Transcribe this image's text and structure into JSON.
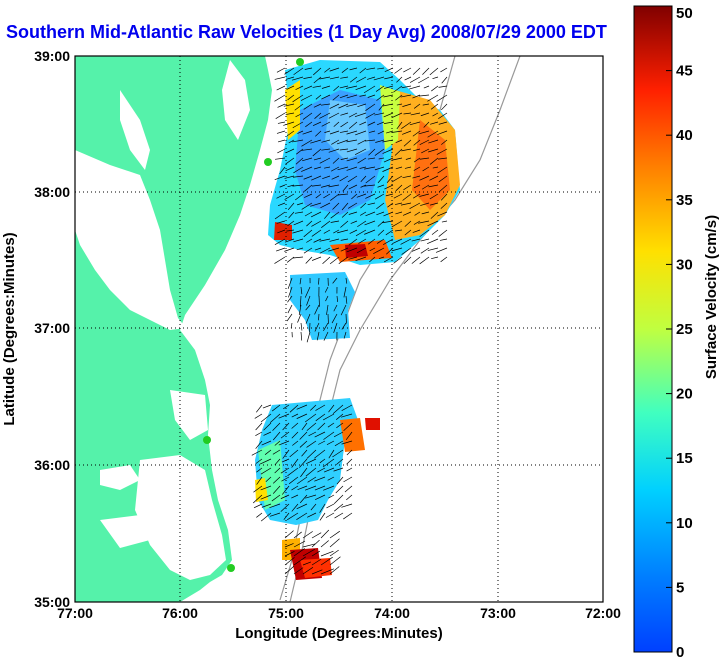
{
  "title": "Southern Mid-Atlantic Raw Velocities (1 Day Avg) 2008/07/29 2000 EDT",
  "axes": {
    "xlabel": "Longitude (Degrees:Minutes)",
    "ylabel": "Latitude (Degrees:Minutes)",
    "xticks": [
      "77:00",
      "76:00",
      "75:00",
      "74:00",
      "73:00",
      "72:00"
    ],
    "yticks": [
      "39:00",
      "38:00",
      "37:00",
      "36:00",
      "35:00"
    ],
    "xlim": [
      -77,
      -72
    ],
    "ylim": [
      35,
      39
    ],
    "grid": "dotted"
  },
  "colorbar": {
    "label": "Surface Velocity (cm/s)",
    "ticks": [
      "0",
      "5",
      "10",
      "15",
      "20",
      "25",
      "30",
      "35",
      "40",
      "45",
      "50"
    ],
    "range": [
      0,
      50
    ],
    "colormap": "jet"
  },
  "colors": {
    "land": "#55f2aa",
    "title": "#0000ee",
    "station": "#22cc22"
  },
  "legend_icons": [
    "station-marker-icon"
  ]
}
